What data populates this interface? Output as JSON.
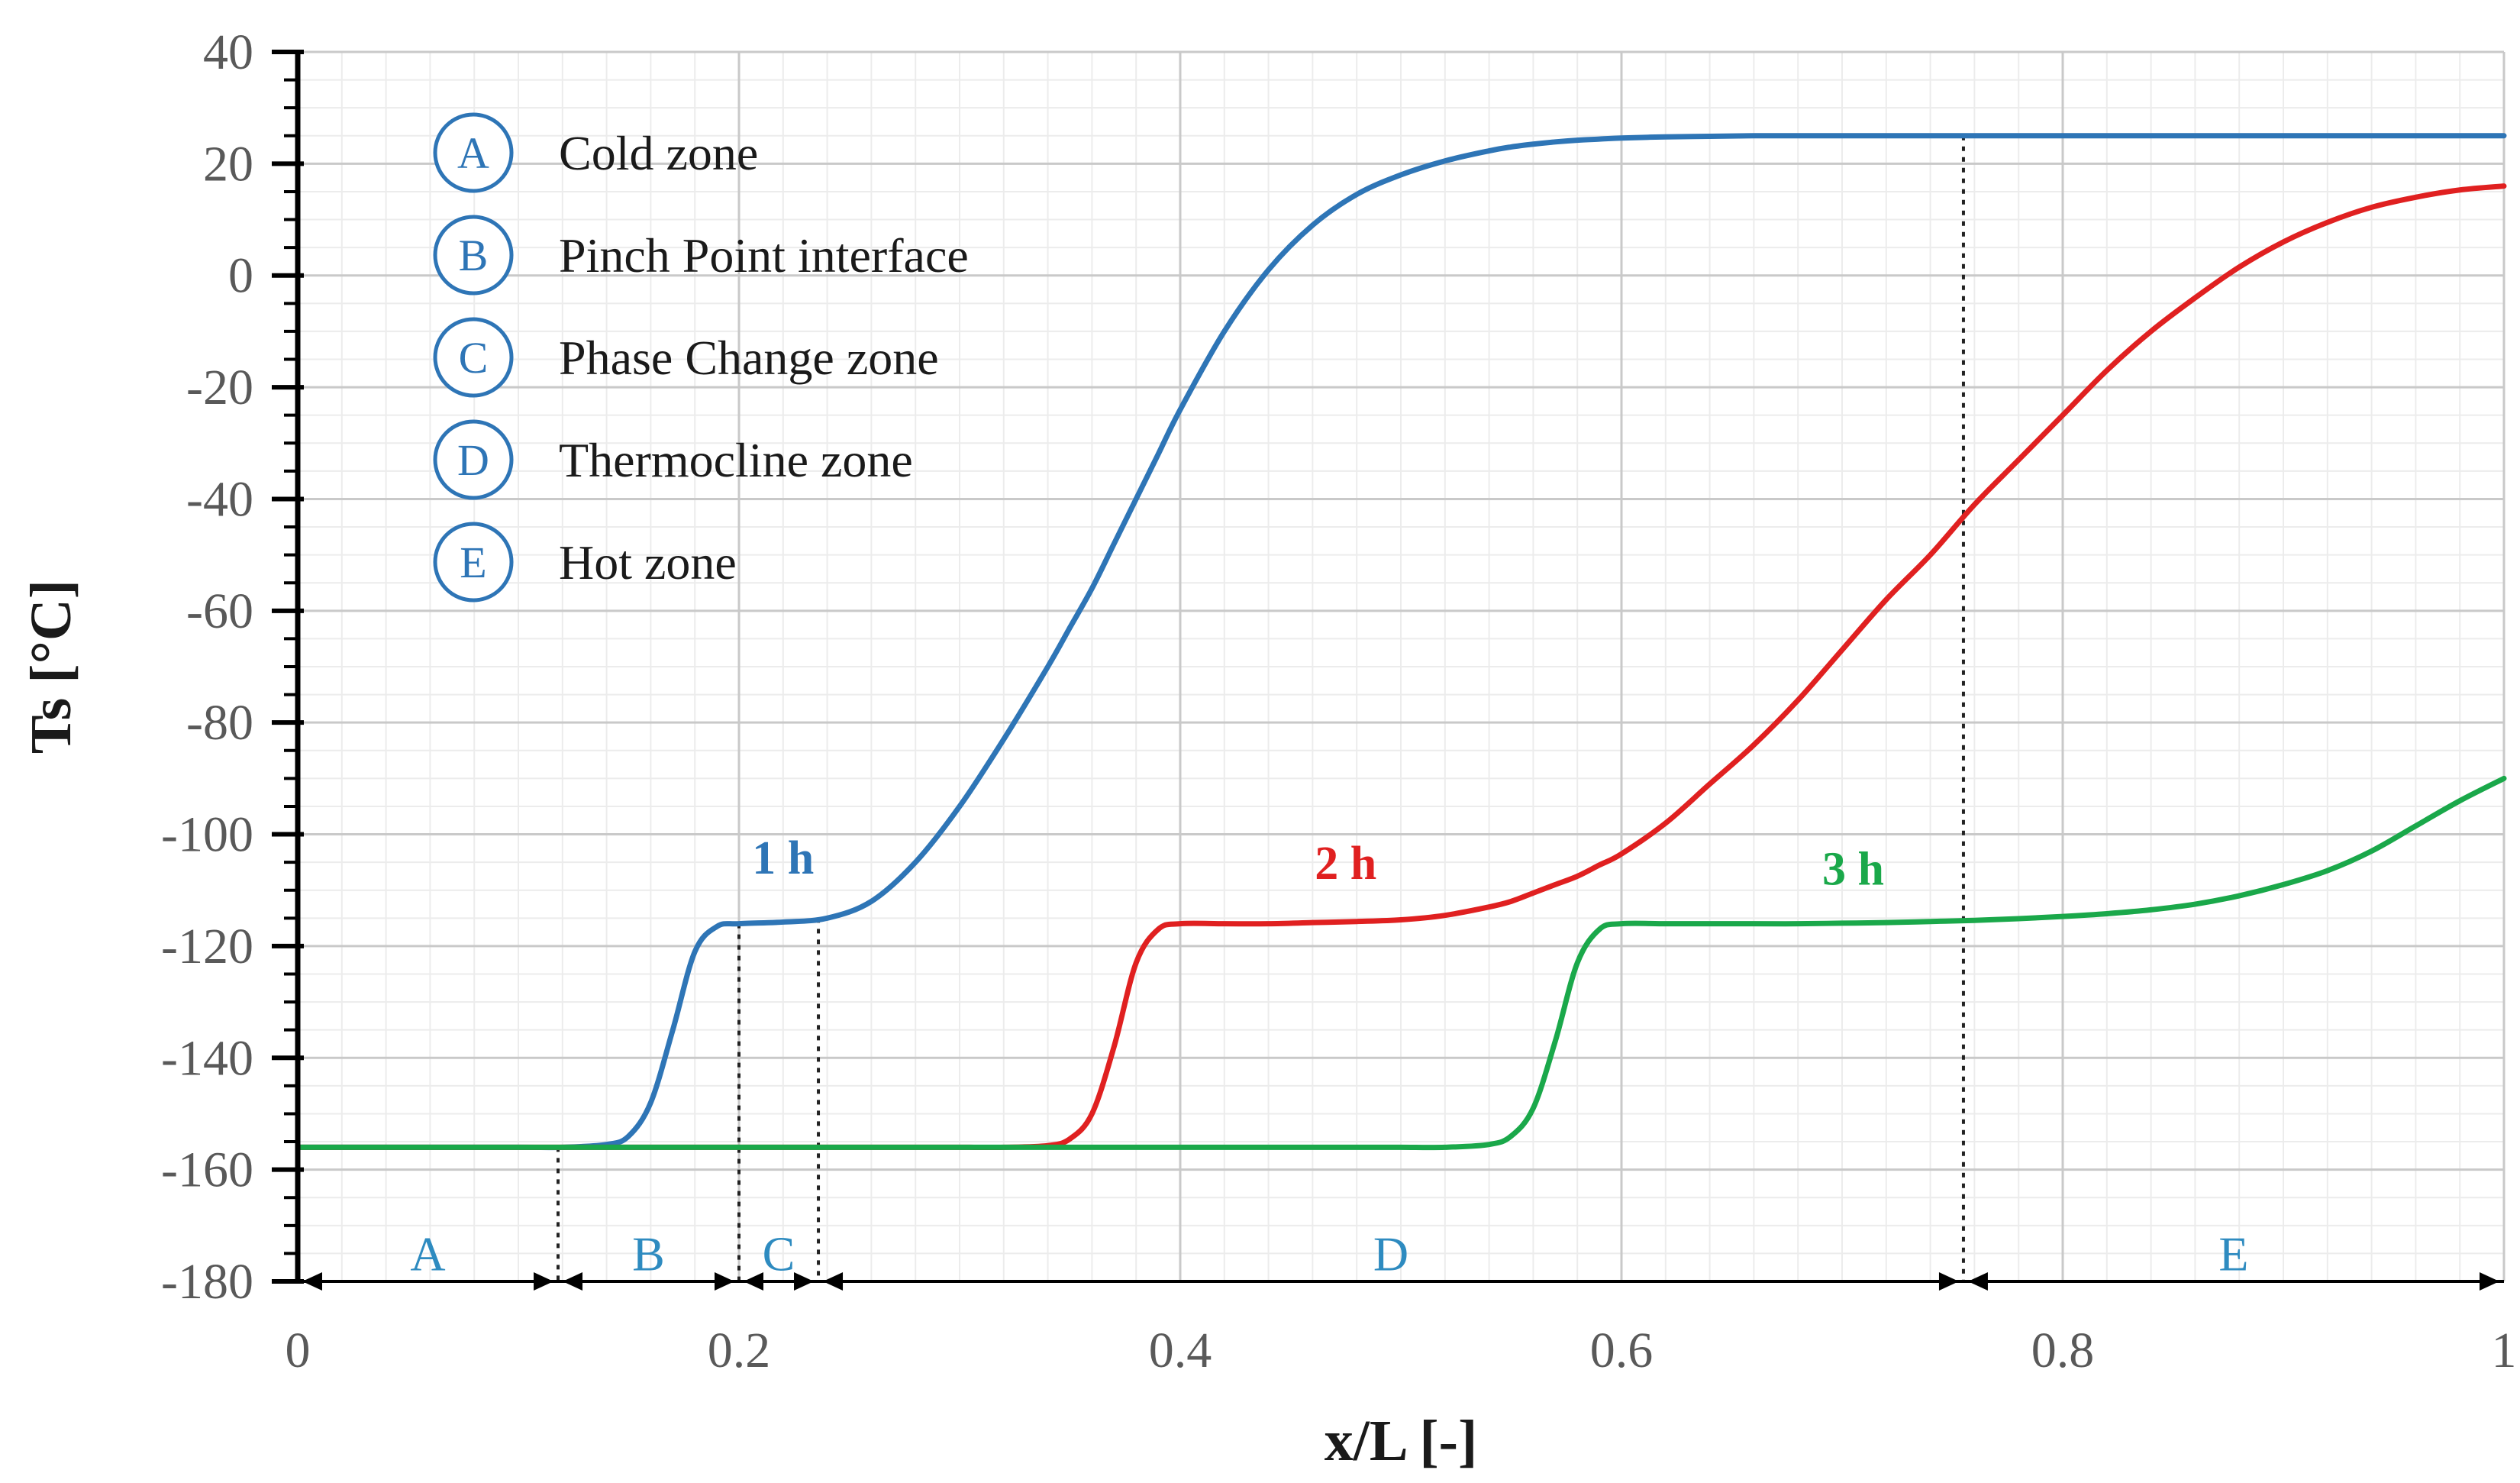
{
  "chart_data": {
    "type": "line",
    "title": "",
    "xlabel": "x/L [-]",
    "ylabel": "Ts [°C]",
    "xlim": [
      0,
      1
    ],
    "ylim": [
      -180,
      40
    ],
    "x_ticks": [
      0,
      0.2,
      0.4,
      0.6,
      0.8,
      1
    ],
    "x_tick_labels": [
      "0",
      "0.2",
      "0.4",
      "0.6",
      "0.8",
      "1"
    ],
    "y_ticks": [
      40,
      20,
      0,
      -20,
      -40,
      -60,
      -80,
      -100,
      -120,
      -140,
      -160,
      -180
    ],
    "y_tick_labels": [
      "40",
      "20",
      "0",
      "-20",
      "-40",
      "-60",
      "-80",
      "-100",
      "-120",
      "-140",
      "-160",
      "-180"
    ],
    "grid": true,
    "x": [
      0,
      0.05,
      0.1,
      0.12,
      0.14,
      0.15,
      0.16,
      0.17,
      0.18,
      0.19,
      0.2,
      0.22,
      0.24,
      0.26,
      0.28,
      0.3,
      0.32,
      0.34,
      0.35,
      0.36,
      0.37,
      0.38,
      0.39,
      0.4,
      0.42,
      0.44,
      0.46,
      0.48,
      0.5,
      0.52,
      0.54,
      0.55,
      0.56,
      0.57,
      0.58,
      0.59,
      0.6,
      0.62,
      0.64,
      0.66,
      0.68,
      0.7,
      0.72,
      0.74,
      0.76,
      0.78,
      0.8,
      0.82,
      0.84,
      0.86,
      0.88,
      0.9,
      0.92,
      0.94,
      0.96,
      0.98,
      1.0
    ],
    "series": [
      {
        "name": "1 h",
        "color": "#2e75b6",
        "values": [
          -156,
          -156,
          -156,
          -156,
          -155.5,
          -154,
          -148,
          -135,
          -121,
          -116.5,
          -116,
          -115.7,
          -115,
          -112,
          -105,
          -95,
          -83,
          -70,
          -63,
          -56,
          -48,
          -40,
          -32,
          -24,
          -10,
          1,
          9,
          14.5,
          18,
          20.5,
          22.3,
          23,
          23.5,
          23.9,
          24.2,
          24.4,
          24.6,
          24.8,
          24.9,
          25,
          25,
          25,
          25,
          25,
          25,
          25,
          25,
          25,
          25,
          25,
          25,
          25,
          25,
          25,
          25,
          25,
          25
        ]
      },
      {
        "name": "2 h",
        "color": "#e02020",
        "values": [
          -156,
          -156,
          -156,
          -156,
          -156,
          -156,
          -156,
          -156,
          -156,
          -156,
          -156,
          -156,
          -156,
          -156,
          -156,
          -156,
          -156,
          -155.7,
          -154.5,
          -150,
          -138,
          -123,
          -117,
          -116,
          -116,
          -116,
          -115.8,
          -115.6,
          -115.3,
          -114.5,
          -113,
          -112,
          -110.5,
          -109,
          -107.5,
          -105.5,
          -103.5,
          -98,
          -91,
          -84,
          -76,
          -67,
          -58,
          -50,
          -41,
          -33,
          -25,
          -17,
          -10,
          -4,
          1.5,
          6,
          9.5,
          12.2,
          14,
          15.3,
          16
        ]
      },
      {
        "name": "3 h",
        "color": "#1aa84a",
        "values": [
          -156,
          -156,
          -156,
          -156,
          -156,
          -156,
          -156,
          -156,
          -156,
          -156,
          -156,
          -156,
          -156,
          -156,
          -156,
          -156,
          -156,
          -156,
          -156,
          -156,
          -156,
          -156,
          -156,
          -156,
          -156,
          -156,
          -156,
          -156,
          -156,
          -156,
          -155.5,
          -154,
          -149,
          -137,
          -123,
          -117,
          -116,
          -116,
          -116,
          -116,
          -116,
          -115.9,
          -115.8,
          -115.6,
          -115.4,
          -115.1,
          -114.7,
          -114.2,
          -113.5,
          -112.5,
          -111,
          -109,
          -106.5,
          -103,
          -98.5,
          -94,
          -90
        ]
      }
    ],
    "curve_labels": [
      {
        "text": "1 h",
        "x": 0.22,
        "y": -107,
        "color": "#2e75b6"
      },
      {
        "text": "2 h",
        "x": 0.475,
        "y": -108,
        "color": "#e02020"
      },
      {
        "text": "3 h",
        "x": 0.705,
        "y": -109,
        "color": "#1aa84a"
      }
    ],
    "zone_boundaries": [
      {
        "x": 0.118,
        "y_top": -156
      },
      {
        "x": 0.2,
        "y_top": -116
      },
      {
        "x": 0.236,
        "y_top": -115
      },
      {
        "x": 0.755,
        "y_top": 25
      }
    ],
    "zones": [
      {
        "letter": "A",
        "from": 0,
        "to": 0.118
      },
      {
        "letter": "B",
        "from": 0.118,
        "to": 0.2
      },
      {
        "letter": "C",
        "from": 0.2,
        "to": 0.236
      },
      {
        "letter": "D",
        "from": 0.236,
        "to": 0.755
      },
      {
        "letter": "E",
        "from": 0.755,
        "to": 1
      }
    ],
    "legend": [
      {
        "letter": "A",
        "label": "Cold zone"
      },
      {
        "letter": "B",
        "label": "Pinch Point interface"
      },
      {
        "letter": "C",
        "label": "Phase Change zone"
      },
      {
        "letter": "D",
        "label": "Thermocline zone"
      },
      {
        "letter": "E",
        "label": "Hot zone"
      }
    ],
    "legend_position": "top-left"
  }
}
